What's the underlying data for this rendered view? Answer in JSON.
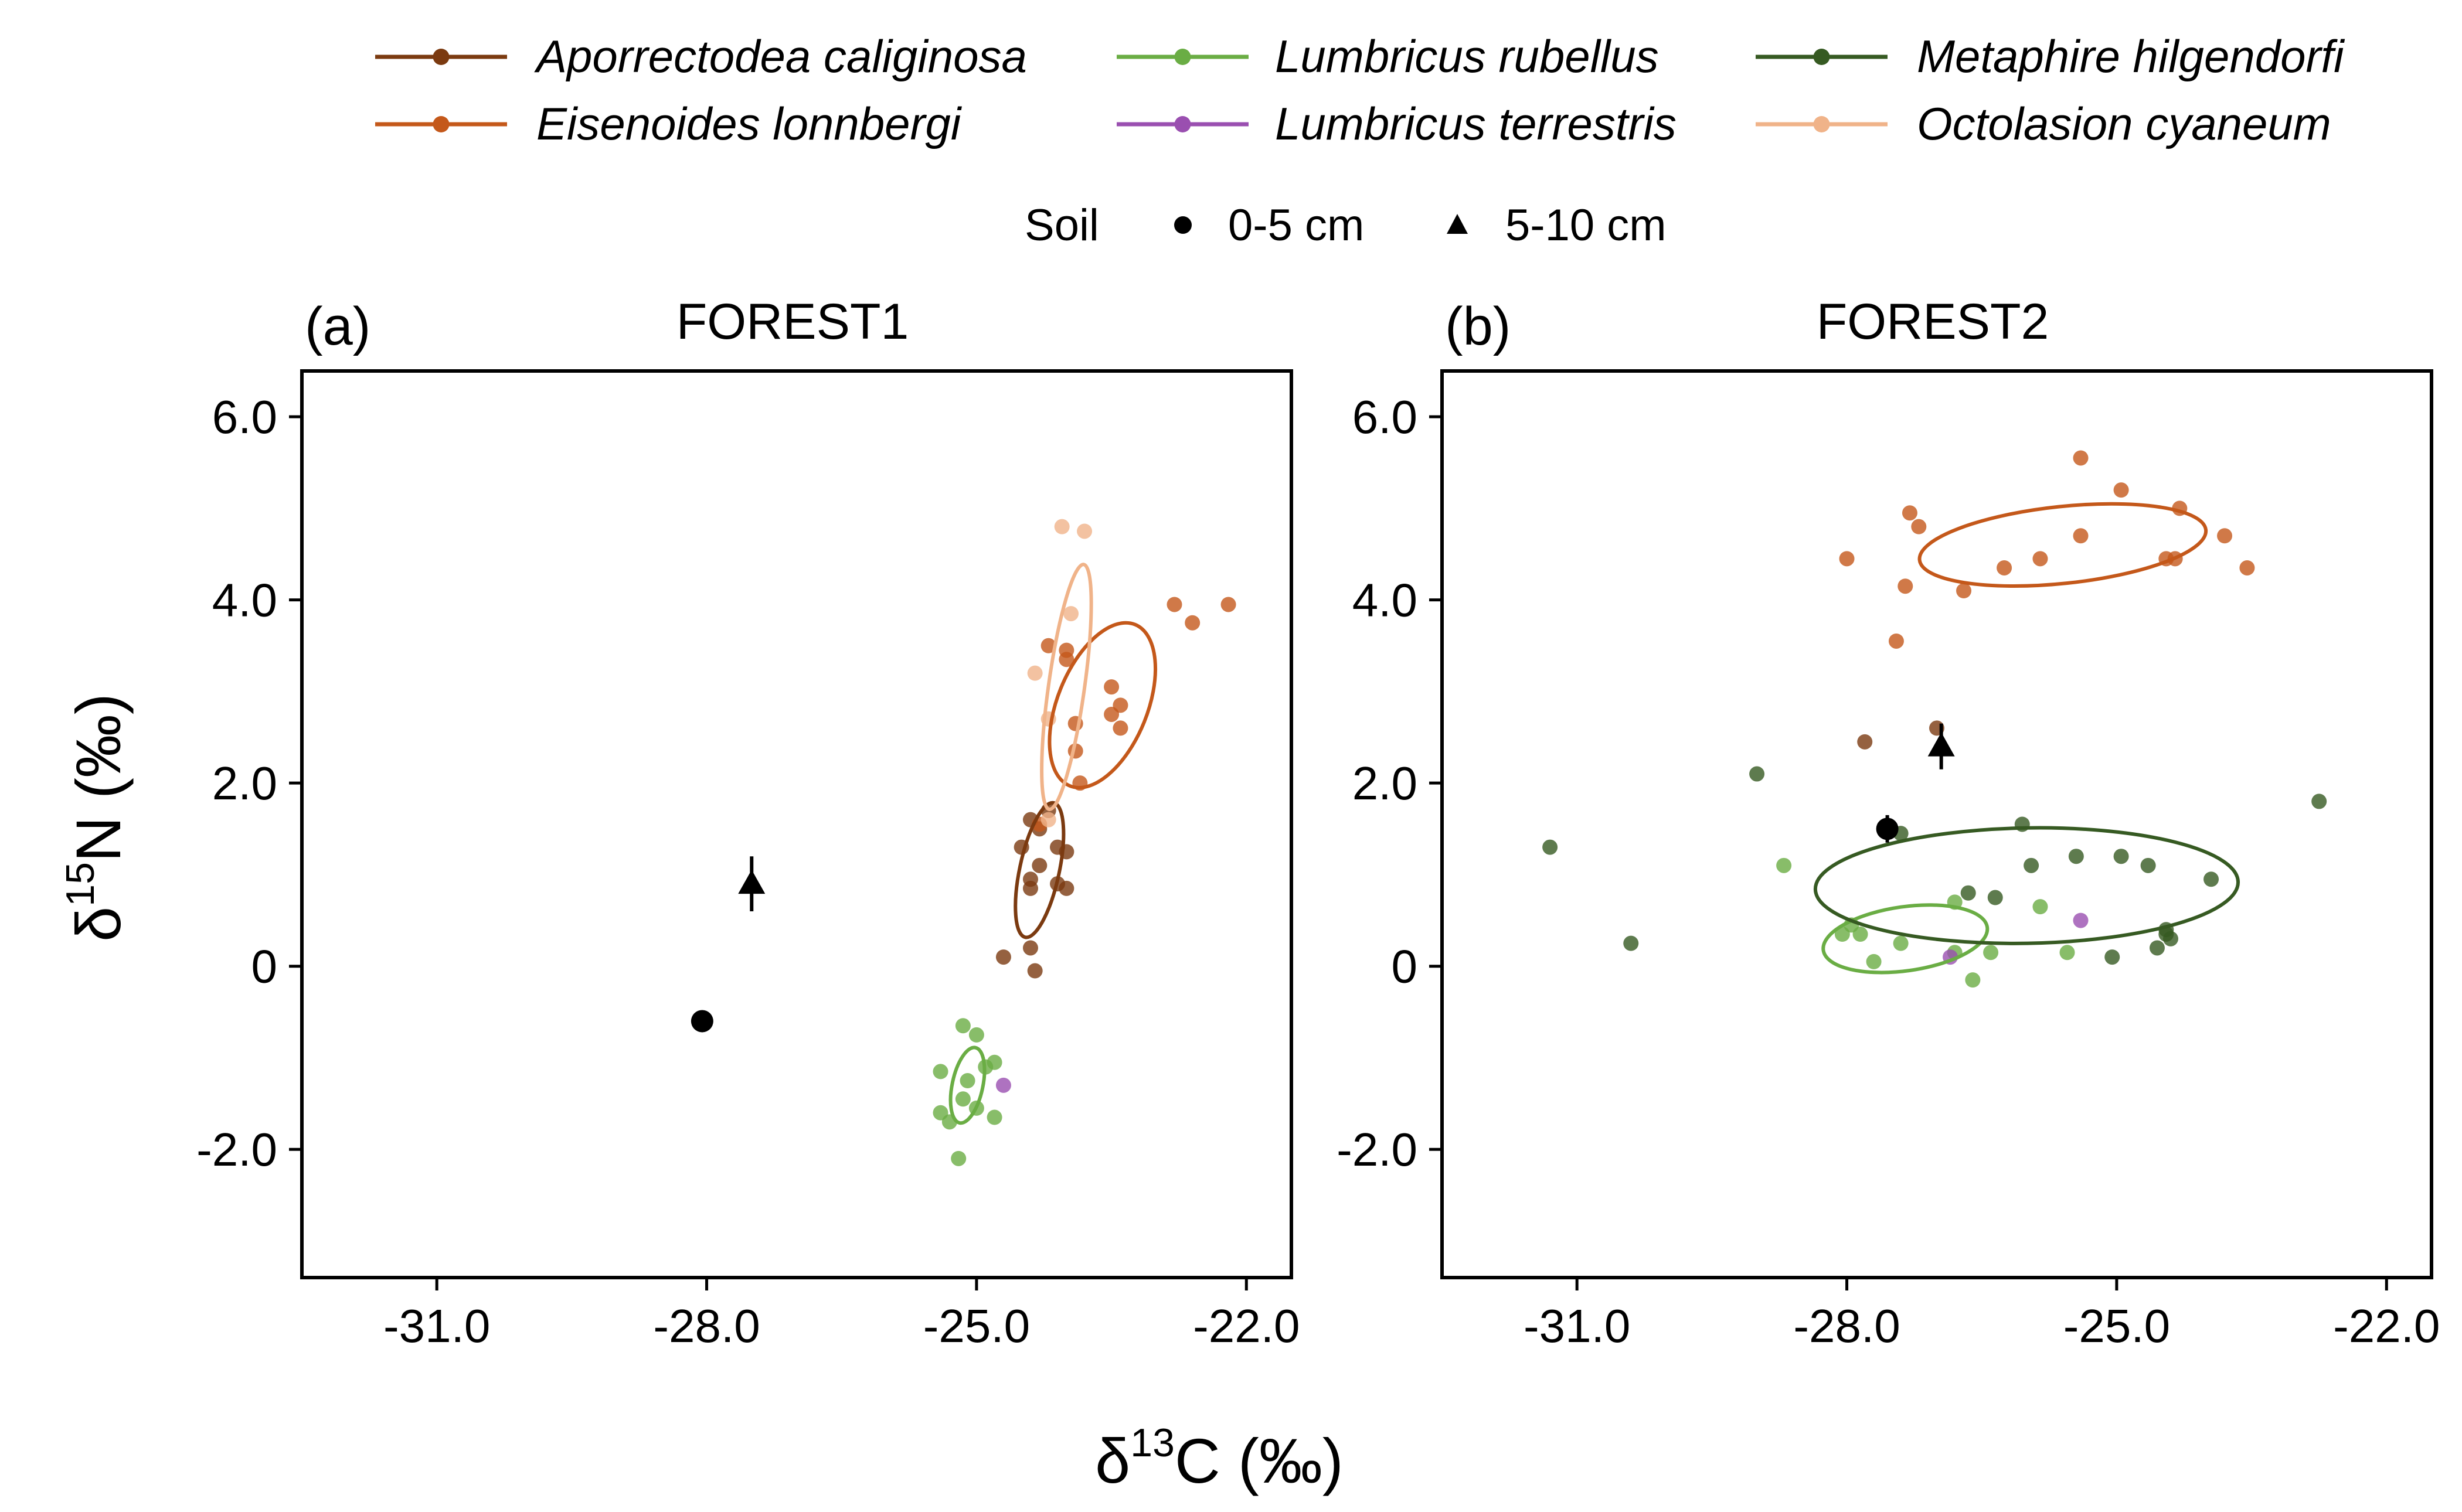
{
  "colors": {
    "Aporrectodea caliginosa": "#7b3a10",
    "Eisenoides lonnbergi": "#c4581a",
    "Lumbricus rubellus": "#6aad44",
    "Lumbricus terrestris": "#9a4fb0",
    "Metaphire hilgendorfi": "#365a22",
    "Octolasion cyaneum": "#f0b389",
    "soil": "#000000"
  },
  "legend": {
    "species": [
      "Aporrectodea caliginosa",
      "Eisenoides lonnbergi",
      "Lumbricus rubellus",
      "Lumbricus terrestris",
      "Metaphire hilgendorfi",
      "Octolasion cyaneum"
    ],
    "soil_title": "Soil",
    "soil_items": [
      "0-5 cm",
      "5-10 cm"
    ]
  },
  "axes": {
    "xlabel_prefix": "δ",
    "xlabel_sup": "13",
    "xlabel_rest": "C (‰)",
    "ylabel_prefix": "δ",
    "ylabel_sup": "15",
    "ylabel_rest": "N (‰)"
  },
  "chart_data": [
    {
      "type": "scatter",
      "panel": "(a)",
      "title": "FOREST1",
      "xlim": [
        -32.5,
        -21.5
      ],
      "ylim": [
        -3.4,
        6.5
      ],
      "xticks": [
        -31.0,
        -28.0,
        -25.0,
        -22.0
      ],
      "xtick_labels": [
        "-31.0",
        "-28.0",
        "-25.0",
        "-22.0"
      ],
      "yticks": [
        -2.0,
        0,
        2.0,
        4.0,
        6.0
      ],
      "ytick_labels": [
        "-2.0",
        "0",
        "2.0",
        "4.0",
        "6.0"
      ],
      "series": [
        {
          "species": "Aporrectodea caliginosa",
          "points": [
            [
              -24.4,
              1.6
            ],
            [
              -24.2,
              1.7
            ],
            [
              -24.3,
              1.5
            ],
            [
              -24.1,
              1.3
            ],
            [
              -24.5,
              1.3
            ],
            [
              -24.0,
              1.25
            ],
            [
              -24.3,
              1.1
            ],
            [
              -24.4,
              0.95
            ],
            [
              -24.4,
              0.85
            ],
            [
              -24.1,
              0.9
            ],
            [
              -24.0,
              0.85
            ],
            [
              -24.7,
              0.1
            ],
            [
              -24.4,
              0.2
            ],
            [
              -24.35,
              -0.05
            ]
          ],
          "ellipse": {
            "cx": -24.3,
            "cy": 1.05,
            "rx": 0.22,
            "ry": 0.75,
            "rot": 12
          }
        },
        {
          "species": "Eisenoides lonnbergi",
          "points": [
            [
              -22.2,
              3.95
            ],
            [
              -22.8,
              3.95
            ],
            [
              -22.6,
              3.75
            ],
            [
              -24.2,
              3.5
            ],
            [
              -24.0,
              3.45
            ],
            [
              -24.0,
              3.35
            ],
            [
              -23.5,
              3.05
            ],
            [
              -23.4,
              2.85
            ],
            [
              -23.5,
              2.75
            ],
            [
              -23.9,
              2.65
            ],
            [
              -23.4,
              2.6
            ],
            [
              -23.9,
              2.35
            ],
            [
              -23.85,
              2.0
            ],
            [
              -24.3,
              1.55
            ]
          ],
          "ellipse": {
            "cx": -23.6,
            "cy": 2.85,
            "rx": 0.5,
            "ry": 0.95,
            "rot": 22
          }
        },
        {
          "species": "Lumbricus rubellus",
          "points": [
            [
              -25.15,
              -0.65
            ],
            [
              -25.0,
              -0.75
            ],
            [
              -24.8,
              -1.05
            ],
            [
              -25.4,
              -1.15
            ],
            [
              -24.9,
              -1.1
            ],
            [
              -25.1,
              -1.25
            ],
            [
              -25.15,
              -1.45
            ],
            [
              -25.0,
              -1.55
            ],
            [
              -25.4,
              -1.6
            ],
            [
              -24.8,
              -1.65
            ],
            [
              -25.3,
              -1.7
            ],
            [
              -25.2,
              -2.1
            ]
          ],
          "ellipse": {
            "cx": -25.1,
            "cy": -1.3,
            "rx": 0.17,
            "ry": 0.42,
            "rot": 12
          }
        },
        {
          "species": "Lumbricus terrestris",
          "points": [
            [
              -24.7,
              -1.3
            ]
          ],
          "ellipse": null
        },
        {
          "species": "Octolasion cyaneum",
          "points": [
            [
              -24.05,
              4.8
            ],
            [
              -23.8,
              4.75
            ],
            [
              -23.95,
              3.85
            ],
            [
              -24.35,
              3.2
            ],
            [
              -24.2,
              2.7
            ],
            [
              -24.2,
              1.6
            ]
          ],
          "ellipse": {
            "cx": -24.0,
            "cy": 3.05,
            "rx": 0.2,
            "ry": 1.35,
            "rot": 8
          }
        }
      ],
      "soil": [
        {
          "label": "0-5 cm",
          "marker": "circle",
          "x": -28.05,
          "y": -0.6,
          "yerr": 0
        },
        {
          "label": "5-10 cm",
          "marker": "triangle",
          "x": -27.5,
          "y": 0.9,
          "yerr": 0.3
        }
      ]
    },
    {
      "type": "scatter",
      "panel": "(b)",
      "title": "FOREST2",
      "xlim": [
        -32.5,
        -21.5
      ],
      "ylim": [
        -3.4,
        6.5
      ],
      "xticks": [
        -31.0,
        -28.0,
        -25.0,
        -22.0
      ],
      "xtick_labels": [
        "-31.0",
        "-28.0",
        "-25.0",
        "-22.0"
      ],
      "yticks": [
        -2.0,
        0,
        2.0,
        4.0,
        6.0
      ],
      "ytick_labels": [
        "-2.0",
        "0",
        "2.0",
        "4.0",
        "6.0"
      ],
      "series": [
        {
          "species": "Aporrectodea caliginosa",
          "points": [
            [
              -27.8,
              2.45
            ],
            [
              -27.0,
              2.6
            ]
          ],
          "ellipse": null
        },
        {
          "species": "Eisenoides lonnbergi",
          "points": [
            [
              -25.4,
              5.55
            ],
            [
              -24.95,
              5.2
            ],
            [
              -27.3,
              4.95
            ],
            [
              -24.3,
              5.0
            ],
            [
              -27.2,
              4.8
            ],
            [
              -25.4,
              4.7
            ],
            [
              -23.8,
              4.7
            ],
            [
              -28.0,
              4.45
            ],
            [
              -25.85,
              4.45
            ],
            [
              -26.25,
              4.35
            ],
            [
              -24.35,
              4.45
            ],
            [
              -24.45,
              4.45
            ],
            [
              -23.55,
              4.35
            ],
            [
              -27.35,
              4.15
            ],
            [
              -26.7,
              4.1
            ],
            [
              -27.45,
              3.55
            ]
          ],
          "ellipse": {
            "cx": -25.6,
            "cy": 4.6,
            "rx": 1.6,
            "ry": 0.42,
            "rot": -6
          }
        },
        {
          "species": "Lumbricus rubellus",
          "points": [
            [
              -28.7,
              1.1
            ],
            [
              -27.95,
              0.45
            ],
            [
              -28.05,
              0.35
            ],
            [
              -27.85,
              0.35
            ],
            [
              -27.7,
              0.05
            ],
            [
              -27.4,
              0.25
            ],
            [
              -26.8,
              0.7
            ],
            [
              -26.4,
              0.15
            ],
            [
              -26.8,
              0.15
            ],
            [
              -25.85,
              0.65
            ],
            [
              -25.55,
              0.15
            ],
            [
              -26.6,
              -0.15
            ]
          ],
          "ellipse": {
            "cx": -27.35,
            "cy": 0.3,
            "rx": 0.92,
            "ry": 0.35,
            "rot": -8
          }
        },
        {
          "species": "Lumbricus terrestris",
          "points": [
            [
              -25.4,
              0.5
            ],
            [
              -26.85,
              0.1
            ]
          ],
          "ellipse": null
        },
        {
          "species": "Metaphire hilgendorfi",
          "points": [
            [
              -31.3,
              1.3
            ],
            [
              -30.4,
              0.25
            ],
            [
              -29.0,
              2.1
            ],
            [
              -27.4,
              1.45
            ],
            [
              -26.65,
              0.8
            ],
            [
              -26.35,
              0.75
            ],
            [
              -26.05,
              1.55
            ],
            [
              -25.95,
              1.1
            ],
            [
              -25.45,
              1.2
            ],
            [
              -25.05,
              0.1
            ],
            [
              -24.95,
              1.2
            ],
            [
              -24.65,
              1.1
            ],
            [
              -23.95,
              0.95
            ],
            [
              -24.45,
              0.4
            ],
            [
              -24.45,
              0.35
            ],
            [
              -24.4,
              0.3
            ],
            [
              -24.55,
              0.2
            ],
            [
              -22.75,
              1.8
            ]
          ],
          "ellipse": {
            "cx": -26.0,
            "cy": 0.88,
            "rx": 2.35,
            "ry": 0.63,
            "rot": -1
          }
        }
      ],
      "soil": [
        {
          "label": "0-5 cm",
          "marker": "circle",
          "x": -27.55,
          "y": 1.5,
          "yerr": 0.15
        },
        {
          "label": "5-10 cm",
          "marker": "triangle",
          "x": -26.95,
          "y": 2.4,
          "yerr": 0.25
        }
      ]
    }
  ]
}
